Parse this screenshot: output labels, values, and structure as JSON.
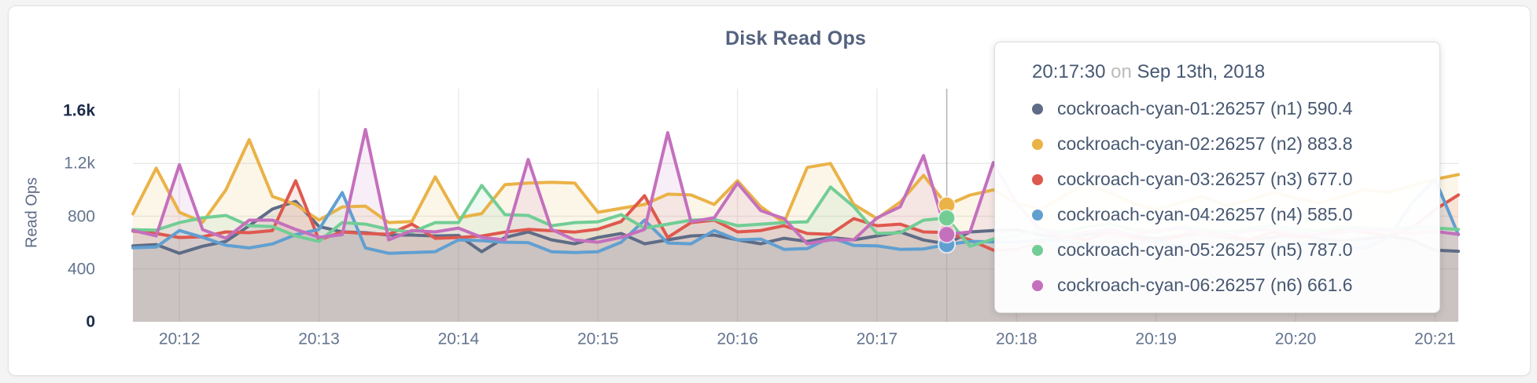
{
  "panel": {
    "title": "Disk Read Ops"
  },
  "y_axis": {
    "label": "Read Ops",
    "max": 1600,
    "ticks": [
      {
        "label": "0",
        "value": 0,
        "emph": true
      },
      {
        "label": "400",
        "value": 400,
        "emph": false
      },
      {
        "label": "800",
        "value": 800,
        "emph": false
      },
      {
        "label": "1.2k",
        "value": 1200,
        "emph": false
      },
      {
        "label": "1.6k",
        "value": 1600,
        "emph": true
      }
    ]
  },
  "x_axis": {
    "ticks": [
      {
        "label": "20:12",
        "t": 20
      },
      {
        "label": "20:13",
        "t": 80
      },
      {
        "label": "20:14",
        "t": 140
      },
      {
        "label": "20:15",
        "t": 200
      },
      {
        "label": "20:16",
        "t": 260
      },
      {
        "label": "20:17",
        "t": 320
      },
      {
        "label": "20:18",
        "t": 380
      },
      {
        "label": "20:19",
        "t": 440
      },
      {
        "label": "20:20",
        "t": 500
      },
      {
        "label": "20:21",
        "t": 560
      }
    ]
  },
  "tooltip": {
    "time": "20:17:30",
    "conjunction": "on",
    "date": "Sep 13th, 2018",
    "rows": [
      {
        "name": "cockroach-cyan-01:26257 (n1)",
        "value": "590.4",
        "color": "#5f6c87"
      },
      {
        "name": "cockroach-cyan-02:26257 (n2)",
        "value": "883.8",
        "color": "#eab247"
      },
      {
        "name": "cockroach-cyan-03:26257 (n3)",
        "value": "677.0",
        "color": "#df584e"
      },
      {
        "name": "cockroach-cyan-04:26257 (n4)",
        "value": "585.0",
        "color": "#619fd1"
      },
      {
        "name": "cockroach-cyan-05:26257 (n5)",
        "value": "787.0",
        "color": "#72cd95"
      },
      {
        "name": "cockroach-cyan-06:26257 (n6)",
        "value": "661.6",
        "color": "#c470bd"
      }
    ]
  },
  "chart_style": {
    "grid_color": "#ebebeb",
    "crosshair_color": "#b4b4b4",
    "fill_opacity": 0.12,
    "line_width": 4
  },
  "chart_data": {
    "type": "area",
    "title": "Disk Read Ops",
    "ylabel": "Read Ops",
    "ylim": [
      0,
      1600
    ],
    "grid": true,
    "x_start_time": "20:11:40",
    "x_interval_seconds": 10,
    "x_total_seconds": 570,
    "hover_t": 350,
    "hover_time": "20:17:30",
    "series": [
      {
        "name": "cockroach-cyan-01:26257 (n1)",
        "short": "n1",
        "color": "#5f6c87",
        "values": [
          575,
          585,
          519,
          573,
          609,
          728,
          854,
          913,
          722,
          681,
          675,
          657,
          657,
          651,
          654,
          531,
          639,
          681,
          621,
          591,
          639,
          669,
          591,
          621,
          651,
          657,
          621,
          591,
          633,
          609,
          639,
          621,
          651,
          681,
          620,
          590.4,
          681,
          692,
          698,
          660,
          640,
          660,
          680,
          650,
          630,
          650,
          670,
          640,
          620,
          640,
          660,
          630,
          610,
          630,
          650,
          620,
          543,
          535
        ]
      },
      {
        "name": "cockroach-cyan-02:26257 (n2)",
        "short": "n2",
        "color": "#eab247",
        "values": [
          818,
          1164,
          830,
          755,
          1000,
          1380,
          949,
          889,
          770,
          871,
          877,
          752,
          760,
          1098,
          788,
          820,
          1039,
          1051,
          1057,
          1051,
          830,
          860,
          889,
          967,
          961,
          889,
          1069,
          872,
          752,
          1170,
          1200,
          889,
          782,
          907,
          1110,
          883.8,
          960,
          1000,
          900,
          850,
          950,
          1050,
          980,
          900,
          850,
          900,
          950,
          880,
          920,
          980,
          940,
          900,
          950,
          1000,
          980,
          1033,
          1080,
          1116
        ]
      },
      {
        "name": "cockroach-cyan-03:26257 (n3)",
        "short": "n3",
        "color": "#df584e",
        "values": [
          687,
          669,
          639,
          645,
          681,
          675,
          692,
          1069,
          621,
          681,
          669,
          663,
          740,
          633,
          639,
          650,
          680,
          700,
          690,
          680,
          702,
          760,
          955,
          639,
          752,
          770,
          681,
          692,
          728,
          669,
          663,
          782,
          728,
          740,
          681,
          677.0,
          620,
          543,
          549,
          600,
          650,
          620,
          680,
          640,
          600,
          650,
          700,
          660,
          620,
          680,
          640,
          660,
          700,
          680,
          650,
          710,
          850,
          961
        ]
      },
      {
        "name": "cockroach-cyan-04:26257 (n4)",
        "short": "n4",
        "color": "#619fd1",
        "values": [
          561,
          567,
          692,
          640,
          580,
          560,
          590,
          660,
          700,
          979,
          560,
          519,
          525,
          531,
          621,
          615,
          603,
          600,
          531,
          525,
          531,
          603,
          770,
          597,
          591,
          692,
          621,
          627,
          549,
          555,
          639,
          579,
          576,
          549,
          552,
          585.0,
          609,
          606,
          603,
          621,
          615,
          580,
          560,
          590,
          610,
          580,
          555,
          570,
          590,
          565,
          580,
          600,
          570,
          560,
          640,
          900,
          1080,
          660
        ]
      },
      {
        "name": "cockroach-cyan-05:26257 (n5)",
        "short": "n5",
        "color": "#72cd95",
        "values": [
          698,
          695,
          752,
          788,
          806,
          728,
          722,
          651,
          609,
          752,
          740,
          700,
          680,
          752,
          752,
          1033,
          812,
          806,
          728,
          752,
          758,
          812,
          710,
          740,
          770,
          776,
          728,
          740,
          752,
          758,
          1021,
          872,
          669,
          675,
          770,
          787.0,
          573,
          627,
          650,
          700,
          680,
          720,
          740,
          700,
          680,
          720,
          700,
          680,
          710,
          730,
          700,
          690,
          720,
          710,
          700,
          720,
          710,
          700
        ]
      },
      {
        "name": "cockroach-cyan-06:26257 (n6)",
        "short": "n6",
        "color": "#c470bd",
        "values": [
          692,
          651,
          1190,
          698,
          633,
          770,
          770,
          700,
          640,
          660,
          1457,
          621,
          692,
          681,
          710,
          640,
          620,
          1230,
          700,
          620,
          603,
          640,
          700,
          1433,
          758,
          788,
          1051,
          842,
          782,
          591,
          621,
          621,
          788,
          872,
          1260,
          661.6,
          681,
          1206,
          901,
          700,
          650,
          680,
          700,
          660,
          690,
          710,
          670,
          650,
          690,
          700,
          670,
          660,
          680,
          700,
          690,
          670,
          685,
          663
        ]
      }
    ]
  }
}
